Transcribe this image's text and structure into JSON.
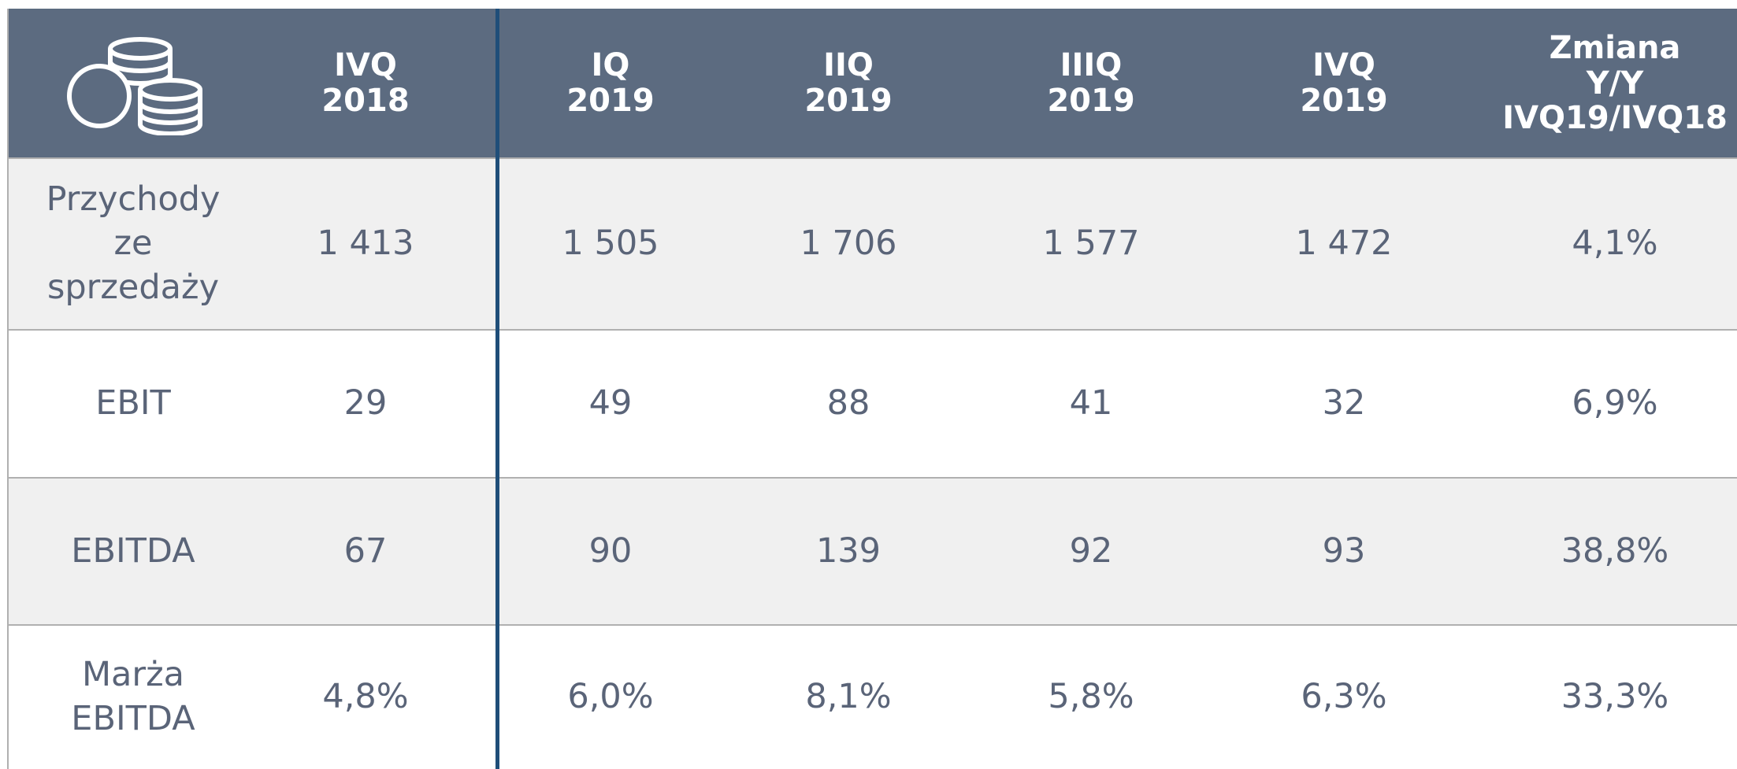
{
  "table": {
    "header": [
      "IVQ\n2018",
      "IQ\n2019",
      "IIQ\n2019",
      "IIIQ\n2019",
      "IVQ\n2019",
      "Zmiana\nY/Y\nIVQ19/IVQ18"
    ],
    "rows": [
      [
        "Przychody\nze\nsprzedaży",
        "1 413",
        "1 505",
        "1 706",
        "1 577",
        "1 472",
        "4,1%"
      ],
      [
        "EBIT",
        "29",
        "49",
        "88",
        "41",
        "32",
        "6,9%"
      ],
      [
        "EBITDA",
        "67",
        "90",
        "139",
        "92",
        "93",
        "38,8%"
      ],
      [
        "Marża\nEBITDA",
        "4,8%",
        "6,0%",
        "8,1%",
        "5,8%",
        "6,3%",
        "33,3%"
      ]
    ]
  }
}
